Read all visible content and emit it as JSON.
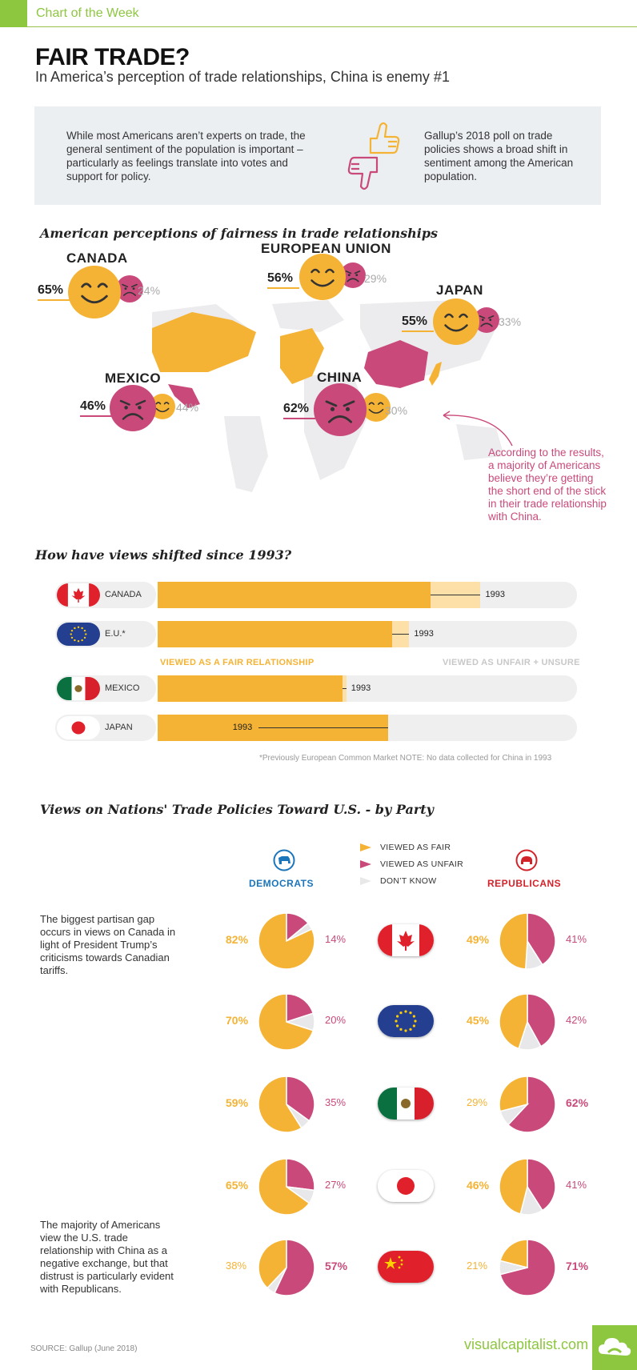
{
  "header": {
    "tag": "Chart of the Week"
  },
  "title": "FAIR TRADE?",
  "subtitle": "In America’s perception of trade relationships, China is enemy #1",
  "intro": {
    "left": "While most Americans aren’t experts on trade, the general sentiment of the population is important – particularly as feelings translate into votes and support for policy.",
    "right": "Gallup’s 2018 poll on trade policies shows a broad shift in sentiment among the American population."
  },
  "section1_title": "American perceptions of fairness in trade relationships",
  "section2_title": "How have views shifted since 1993?",
  "section3_title": "Views on Nations' Trade Policies Toward U.S. - by Party",
  "colors": {
    "fair": "#f5b335",
    "unfair": "#c94a7a",
    "dont_know": "#e8e8ea",
    "brand": "#8dc63f",
    "democrat": "#1a75bb",
    "republican": "#d2232a"
  },
  "map_countries": [
    {
      "name": "CANADA",
      "fair": "65%",
      "unfair": "24%",
      "dominant": "fair"
    },
    {
      "name": "EUROPEAN UNION",
      "fair": "56%",
      "unfair": "29%",
      "dominant": "fair"
    },
    {
      "name": "JAPAN",
      "fair": "55%",
      "unfair": "33%",
      "dominant": "fair"
    },
    {
      "name": "MEXICO",
      "fair": "44%",
      "unfair": "46%",
      "dominant": "unfair"
    },
    {
      "name": "CHINA",
      "fair": "30%",
      "unfair": "62%",
      "dominant": "unfair"
    }
  ],
  "annotation": "According to the results, a majority of Americans believe they’re getting the short end of the stick in their trade relationship with China.",
  "shift_labels": {
    "fair": "VIEWED AS A FAIR RELATIONSHIP",
    "unfair": "VIEWED AS UNFAIR + UNSURE",
    "year": "1993"
  },
  "footnote": "*Previously European Common Market   NOTE: No data collected for China in 1993",
  "party_labels": {
    "dem": "DEMOCRATS",
    "rep": "REPUBLICANS"
  },
  "legend": {
    "fair": "VIEWED AS FAIR",
    "unfair": "VIEWED AS UNFAIR",
    "dont_know": "DON’T KNOW"
  },
  "notes": {
    "canada": "The biggest partisan gap occurs in views on Canada in light of President Trump’s criticisms towards Canadian tariffs.",
    "china": "The majority of Americans view the U.S. trade relationship with China as a negative exchange, but that distrust is particularly evident with Republicans."
  },
  "source": "SOURCE: Gallup (June 2018)",
  "brand": "visualcapitalist.com",
  "chart_data": [
    {
      "type": "bar",
      "title": "How have views shifted since 1993?",
      "categories": [
        "CANADA",
        "E.U.*",
        "MEXICO",
        "JAPAN"
      ],
      "series": [
        {
          "name": "2018",
          "values": [
            65,
            56,
            44,
            55
          ]
        },
        {
          "name": "1993",
          "values": [
            77,
            60,
            45,
            24
          ]
        }
      ],
      "ylim": [
        0,
        100
      ]
    },
    {
      "type": "pie",
      "title": "Views on Nations' Trade Policies Toward U.S. - by Party",
      "categories": [
        "Canada",
        "European Union",
        "Mexico",
        "Japan",
        "China"
      ],
      "series": [
        {
          "name": "DEMOCRATS",
          "fair": [
            82,
            70,
            59,
            65,
            38
          ],
          "unfair": [
            14,
            20,
            35,
            27,
            57
          ]
        },
        {
          "name": "REPUBLICANS",
          "fair": [
            49,
            45,
            29,
            46,
            21
          ],
          "unfair": [
            41,
            42,
            62,
            41,
            71
          ]
        }
      ],
      "labels": {
        "dem_fair": [
          "82%",
          "70%",
          "59%",
          "65%",
          "38%"
        ],
        "dem_unfair": [
          "14%",
          "20%",
          "35%",
          "27%",
          "57%"
        ],
        "rep_fair": [
          "49%",
          "45%",
          "29%",
          "46%",
          "21%"
        ],
        "rep_unfair": [
          "41%",
          "42%",
          "62%",
          "41%",
          "71%"
        ]
      }
    }
  ]
}
